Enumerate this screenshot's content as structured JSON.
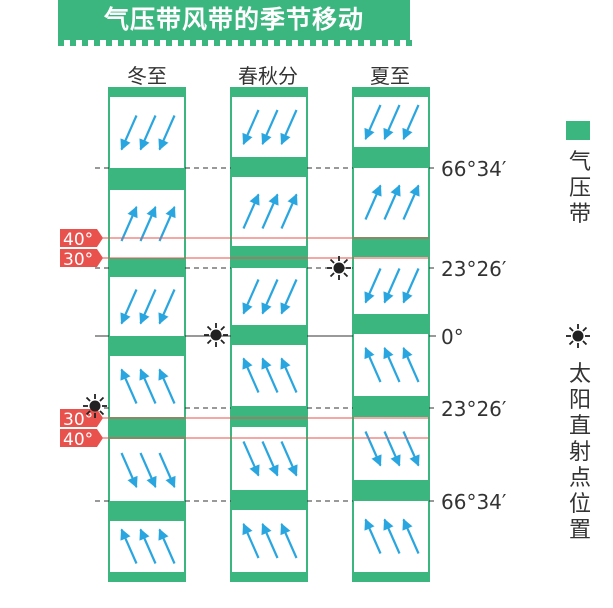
{
  "title": "气压带风带的季节移动",
  "columns": [
    "冬至",
    "春秋分",
    "夏至"
  ],
  "latitude_labels": [
    "66°34′",
    "23°26′",
    "0°",
    "23°26′",
    "66°34′"
  ],
  "red_labels": [
    "40°",
    "30°",
    "30°",
    "40°"
  ],
  "legend": {
    "pressure_belt": "气压带",
    "sun_point": "太阳直射点位置"
  },
  "colors": {
    "green": "#3bb67f",
    "arrow": "#29a6e0",
    "red": "#e9514d"
  },
  "icons": {
    "sun": "sun-icon",
    "pressure": "pressure-belt-swatch"
  }
}
